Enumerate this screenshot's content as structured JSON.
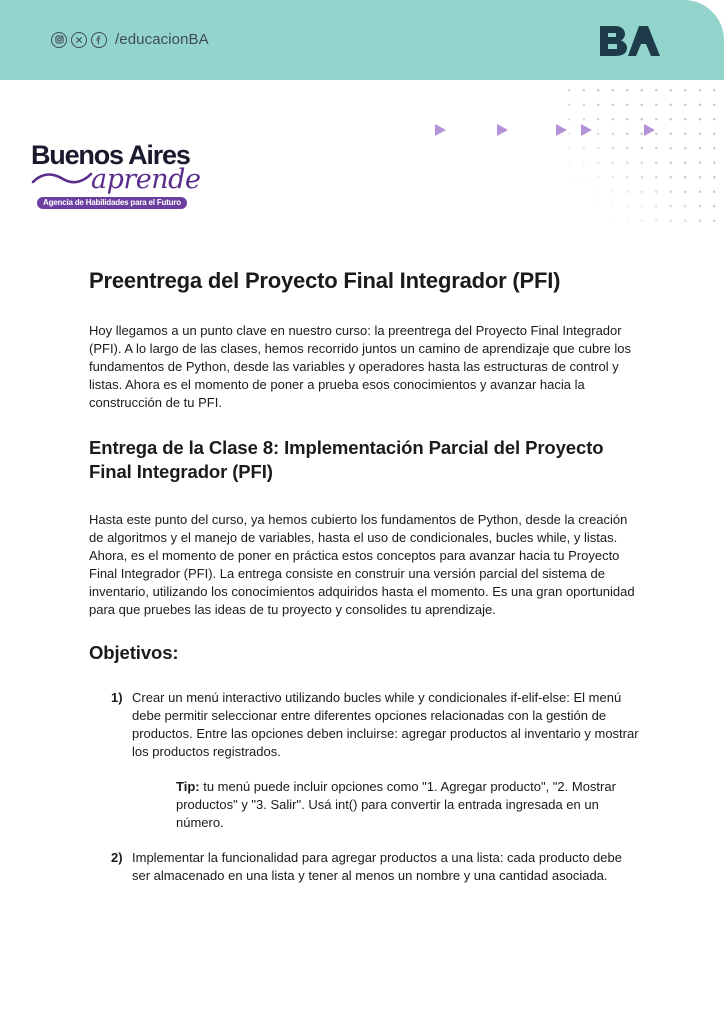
{
  "header": {
    "social_handle": "/educacionBA",
    "social_icons": [
      "instagram-icon",
      "x-icon",
      "facebook-icon"
    ],
    "brand_logo": "BA",
    "bg_color": "#93d4cc"
  },
  "logo": {
    "line1": "Buenos Aires",
    "line2": "aprende",
    "tagline": "Agencia de Habilidades para el Futuro"
  },
  "document": {
    "title": "Preentrega del Proyecto Final Integrador (PFI)",
    "intro": "Hoy llegamos a un punto clave en nuestro curso: la preentrega del Proyecto Final Integrador (PFI). A lo largo de las clases, hemos recorrido juntos un camino de aprendizaje que cubre los fundamentos de Python, desde las variables y operadores hasta las estructuras de control y listas. Ahora es el momento de poner a prueba esos conocimientos y avanzar hacia la construcción de tu PFI.",
    "section_title": "Entrega de la Clase 8: Implementación Parcial del Proyecto Final Integrador (PFI)",
    "section_body": "Hasta este punto del curso, ya hemos cubierto los fundamentos de Python, desde la creación de algoritmos y el manejo de variables, hasta el uso de condicionales, bucles while, y listas. Ahora, es el momento de poner en práctica estos conceptos para avanzar hacia tu Proyecto Final Integrador (PFI). La entrega consiste en construir una versión parcial del sistema de inventario, utilizando los conocimientos adquiridos hasta el momento. Es una gran oportunidad para que pruebes las ideas de tu proyecto y consolides tu aprendizaje.",
    "objectives_title": "Objetivos:",
    "objectives": [
      {
        "number": "1)",
        "text": "Crear un menú interactivo utilizando bucles while y condicionales if-elif-else: El menú debe permitir seleccionar entre diferentes opciones relacionadas con la gestión de productos.  Entre las opciones deben incluirse: agregar productos al inventario y mostrar los productos registrados."
      },
      {
        "number": "2)",
        "text": "Implementar la funcionalidad para agregar productos a una lista: cada producto debe ser almacenado en una lista y tener al menos un nombre y una cantidad asociada."
      }
    ],
    "tip_label": "Tip:",
    "tip_text": " tu menú puede incluir opciones como \"1. Agregar producto\", \"2. Mostrar productos\" y \"3. Salir\". Usá int() para convertir la entrada ingresada en un número."
  }
}
